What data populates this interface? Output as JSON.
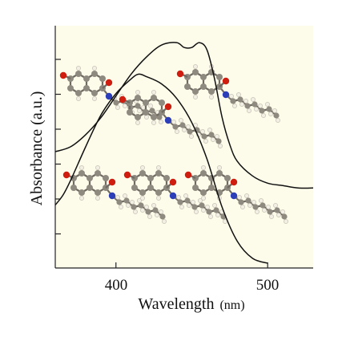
{
  "colors": {
    "plot_background": "#fdfbe9",
    "axis": "#222222",
    "curve": "#111111",
    "atom_carbon": "#8f8a80",
    "atom_hydrogen": "#f2efe4",
    "atom_oxygen": "#cf1d10",
    "atom_nitrogen": "#2c3fb8"
  },
  "chart_data": {
    "type": "line",
    "xlabel": "Wavelength",
    "xunit": "(nm)",
    "ylabel": "Absorbance (a.u.)",
    "xlim": [
      360,
      530
    ],
    "ylim": [
      0,
      1
    ],
    "x_ticks": [
      400,
      500
    ],
    "x_tick_labels": [
      "400",
      "500"
    ],
    "y_ticks_unlabeled": 6,
    "series": [
      {
        "x": [
          360,
          370,
          380,
          390,
          400,
          410,
          420,
          430,
          440,
          445,
          450,
          455,
          460,
          465,
          470,
          475,
          480,
          490,
          500,
          510,
          520,
          530
        ],
        "values": [
          0.48,
          0.5,
          0.55,
          0.62,
          0.71,
          0.8,
          0.87,
          0.92,
          0.93,
          0.91,
          0.91,
          0.93,
          0.9,
          0.78,
          0.62,
          0.51,
          0.44,
          0.38,
          0.35,
          0.34,
          0.33,
          0.33
        ]
      },
      {
        "x": [
          360,
          365,
          370,
          380,
          390,
          400,
          410,
          415,
          420,
          430,
          440,
          450,
          460,
          470,
          480,
          490,
          500
        ],
        "values": [
          0.26,
          0.3,
          0.36,
          0.5,
          0.63,
          0.72,
          0.78,
          0.8,
          0.79,
          0.76,
          0.7,
          0.6,
          0.45,
          0.25,
          0.11,
          0.04,
          0.02
        ]
      }
    ],
    "grid": false,
    "legend": "none",
    "annotations": [
      "molecular ball-and-stick structures (dye molecule) overlaid"
    ]
  }
}
